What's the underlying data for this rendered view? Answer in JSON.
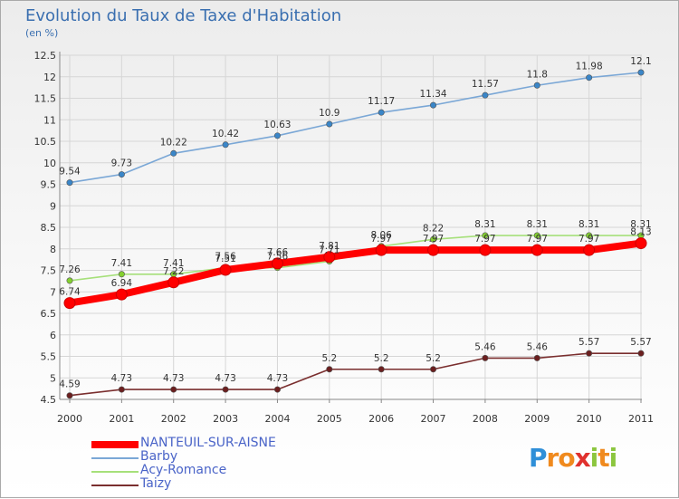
{
  "title": "Evolution du Taux de Taxe d'Habitation",
  "unit": "(en %)",
  "logo": "Proxiti",
  "colors": {
    "title": "#3a6fb0",
    "grid": "#d6d6d6",
    "axis": "#888888",
    "legend_text": "#4a64c8"
  },
  "chart_data": {
    "type": "line",
    "title": "Evolution du Taux de Taxe d'Habitation",
    "ylabel": "(en %)",
    "xlabel": "",
    "categories": [
      "2000",
      "2001",
      "2002",
      "2003",
      "2004",
      "2005",
      "2006",
      "2007",
      "2008",
      "2009",
      "2010",
      "2011"
    ],
    "ylim": [
      4.5,
      12.5
    ],
    "yticks": [
      "4.5",
      "5",
      "5.5",
      "6",
      "6.5",
      "7",
      "7.5",
      "8",
      "8.5",
      "9",
      "9.5",
      "10",
      "10.5",
      "11",
      "11.5",
      "12",
      "12.5"
    ],
    "grid": true,
    "legend_position": "bottom-left",
    "series": [
      {
        "name": "NANTEUIL-SUR-AISNE",
        "color": "#ff0000",
        "point_color": "#ff0000",
        "values": [
          6.74,
          6.94,
          7.22,
          7.51,
          7.66,
          7.81,
          7.97,
          7.97,
          7.97,
          7.97,
          7.97,
          8.13
        ],
        "labels": [
          "6.74",
          "6.94",
          "7.22",
          "7.51",
          "7.66",
          "7.81",
          "7.97",
          "7.97",
          "7.97",
          "7.97",
          "7.97",
          "8.13"
        ]
      },
      {
        "name": "Barby",
        "color": "#7aa7d6",
        "point_color": "#3a86c8",
        "values": [
          9.54,
          9.73,
          10.22,
          10.42,
          10.63,
          10.9,
          11.17,
          11.34,
          11.57,
          11.8,
          11.98,
          12.1
        ],
        "labels": [
          "9.54",
          "9.73",
          "10.22",
          "10.42",
          "10.63",
          "10.9",
          "11.17",
          "11.34",
          "11.57",
          "11.8",
          "11.98",
          "12.1"
        ]
      },
      {
        "name": "Acy-Romance",
        "color": "#a6e07a",
        "point_color": "#84d030",
        "values": [
          7.26,
          7.41,
          7.41,
          7.56,
          7.56,
          7.71,
          8.06,
          8.22,
          8.31,
          8.31,
          8.31,
          8.31
        ],
        "labels": [
          "7.26",
          "7.41",
          "7.41",
          "7.56",
          "7.56",
          "7.71",
          "8.06",
          "8.22",
          "8.31",
          "8.31",
          "8.31",
          "8.31"
        ]
      },
      {
        "name": "Taizy",
        "color": "#7a2e2e",
        "point_color": "#6b1f1f",
        "values": [
          4.59,
          4.73,
          4.73,
          4.73,
          4.73,
          5.2,
          5.2,
          5.2,
          5.46,
          5.46,
          5.57,
          5.57
        ],
        "labels": [
          "4.59",
          "4.73",
          "4.73",
          "4.73",
          "4.73",
          "5.2",
          "5.2",
          "5.2",
          "5.46",
          "5.46",
          "5.57",
          "5.57"
        ]
      }
    ]
  }
}
